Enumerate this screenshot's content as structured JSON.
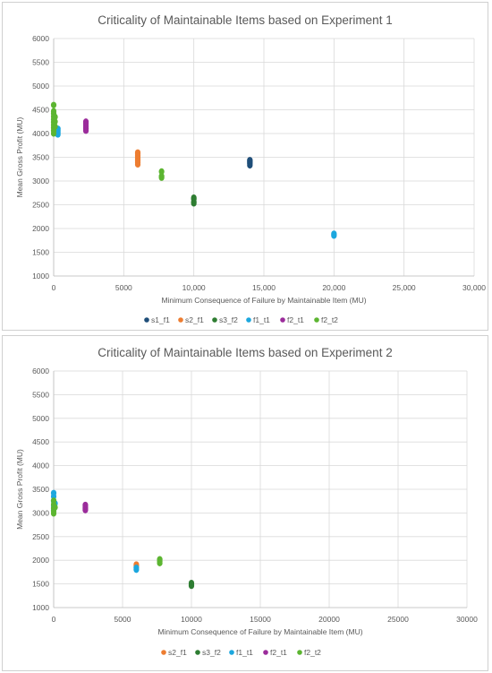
{
  "chart_data": [
    {
      "type": "scatter",
      "title": "Criticality of Maintainable Items based on Experiment 1",
      "xlabel": "Minimum Consequence of Failure by Maintainable Item (MU)",
      "ylabel": "Mean Gross Profit (MU)",
      "xlim": [
        0,
        30000
      ],
      "ylim": [
        1000,
        6000
      ],
      "x_ticks": [
        0,
        5000,
        10000,
        15000,
        20000,
        25000,
        30000
      ],
      "x_tick_labels": [
        "0",
        "5000",
        "10,000",
        "15,000",
        "20,000",
        "25,000",
        "30,000"
      ],
      "y_ticks": [
        1000,
        1500,
        2000,
        2500,
        3000,
        3500,
        4000,
        4500,
        5000,
        5500,
        6000
      ],
      "y_tick_labels": [
        "1000",
        "1500",
        "2000",
        "2500",
        "3000",
        "3500",
        "4000",
        "4500",
        "5000",
        "5500",
        "6000"
      ],
      "grid": true,
      "legend_position": "bottom",
      "series": [
        {
          "name": "s1_f1",
          "color": "#1f4e79",
          "points": [
            [
              14000,
              3330
            ],
            [
              14000,
              3360
            ],
            [
              14000,
              3380
            ],
            [
              14000,
              3400
            ],
            [
              14000,
              3420
            ],
            [
              14000,
              3440
            ]
          ]
        },
        {
          "name": "s2_f1",
          "color": "#ed7d31",
          "points": [
            [
              6000,
              3350
            ],
            [
              6000,
              3390
            ],
            [
              6000,
              3420
            ],
            [
              6000,
              3450
            ],
            [
              6000,
              3480
            ],
            [
              6000,
              3510
            ],
            [
              6000,
              3540
            ],
            [
              6000,
              3570
            ],
            [
              6000,
              3600
            ]
          ]
        },
        {
          "name": "s3_f2",
          "color": "#2e7d32",
          "points": [
            [
              10000,
              2530
            ],
            [
              10000,
              2560
            ],
            [
              10000,
              2620
            ],
            [
              10000,
              2650
            ]
          ]
        },
        {
          "name": "f1_t1",
          "color": "#1ca7de",
          "points": [
            [
              300,
              3980
            ],
            [
              300,
              4020
            ],
            [
              300,
              4060
            ],
            [
              300,
              4100
            ],
            [
              150,
              4010
            ],
            [
              20000,
              1850
            ],
            [
              20000,
              1870
            ],
            [
              20000,
              1890
            ]
          ]
        },
        {
          "name": "f2_t1",
          "color": "#9b2c9b",
          "points": [
            [
              2300,
              4060
            ],
            [
              2300,
              4100
            ],
            [
              2300,
              4140
            ],
            [
              2300,
              4180
            ],
            [
              2300,
              4220
            ],
            [
              2300,
              4250
            ]
          ]
        },
        {
          "name": "f2_t2",
          "color": "#5cb531",
          "points": [
            [
              0,
              4000
            ],
            [
              0,
              4060
            ],
            [
              0,
              4120
            ],
            [
              0,
              4180
            ],
            [
              0,
              4240
            ],
            [
              0,
              4300
            ],
            [
              0,
              4360
            ],
            [
              0,
              4420
            ],
            [
              0,
              4470
            ],
            [
              0,
              4600
            ],
            [
              100,
              4150
            ],
            [
              100,
              4250
            ],
            [
              100,
              4350
            ],
            [
              7700,
              3070
            ],
            [
              7700,
              3100
            ],
            [
              7700,
              3200
            ]
          ]
        }
      ]
    },
    {
      "type": "scatter",
      "title": "Criticality of Maintainable Items based on Experiment 2",
      "xlabel": "Minimum Consequence of Failure by Maintainable Item (MU)",
      "ylabel": "Mean Gross Profit (MU)",
      "xlim": [
        0,
        30000
      ],
      "ylim": [
        1000,
        6000
      ],
      "x_ticks": [
        0,
        5000,
        10000,
        15000,
        20000,
        25000,
        30000
      ],
      "x_tick_labels": [
        "0",
        "5000",
        "10000",
        "15000",
        "20000",
        "25000",
        "30000"
      ],
      "y_ticks": [
        1000,
        1500,
        2000,
        2500,
        3000,
        3500,
        4000,
        4500,
        5000,
        5500,
        6000
      ],
      "y_tick_labels": [
        "1000",
        "1500",
        "2000",
        "2500",
        "3000",
        "3500",
        "4000",
        "4500",
        "5000",
        "5500",
        "6000"
      ],
      "grid": true,
      "legend_position": "bottom",
      "series": [
        {
          "name": "s2_f1",
          "color": "#ed7d31",
          "points": [
            [
              6000,
              1880
            ],
            [
              6000,
              1910
            ]
          ]
        },
        {
          "name": "s3_f2",
          "color": "#2e7d32",
          "points": [
            [
              10000,
              1460
            ],
            [
              10000,
              1490
            ],
            [
              10000,
              1520
            ]
          ]
        },
        {
          "name": "f1_t1",
          "color": "#1ca7de",
          "points": [
            [
              0,
              3050
            ],
            [
              0,
              3150
            ],
            [
              0,
              3250
            ],
            [
              0,
              3350
            ],
            [
              0,
              3420
            ],
            [
              100,
              3200
            ],
            [
              6000,
              1800
            ],
            [
              6000,
              1840
            ]
          ]
        },
        {
          "name": "f2_t1",
          "color": "#9b2c9b",
          "points": [
            [
              2300,
              3060
            ],
            [
              2300,
              3100
            ],
            [
              2300,
              3140
            ],
            [
              2300,
              3170
            ]
          ]
        },
        {
          "name": "f2_t2",
          "color": "#5cb531",
          "points": [
            [
              0,
              2990
            ],
            [
              0,
              3040
            ],
            [
              0,
              3100
            ],
            [
              0,
              3180
            ],
            [
              0,
              3260
            ],
            [
              100,
              3120
            ],
            [
              7700,
              1940
            ],
            [
              7700,
              1980
            ],
            [
              7700,
              2020
            ]
          ]
        }
      ]
    }
  ]
}
